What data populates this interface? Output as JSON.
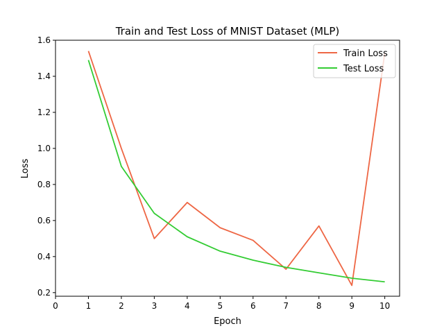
{
  "chart_data": {
    "type": "line",
    "title": "Train and Test Loss of MNIST Dataset (MLP)",
    "xlabel": "Epoch",
    "ylabel": "Loss",
    "xlim": [
      0,
      10.45
    ],
    "ylim": [
      0.18,
      1.6
    ],
    "xticks": [
      0,
      1,
      2,
      3,
      4,
      5,
      6,
      7,
      8,
      9,
      10
    ],
    "yticks": [
      0.2,
      0.4,
      0.6,
      0.8,
      1.0,
      1.2,
      1.4,
      1.6
    ],
    "ytick_labels": [
      "0.2",
      "0.4",
      "0.6",
      "0.8",
      "1.0",
      "1.2",
      "1.4",
      "1.6"
    ],
    "grid": false,
    "legend_position": "top-right",
    "x": [
      1,
      2,
      3,
      4,
      5,
      6,
      7,
      8,
      9,
      10
    ],
    "series": [
      {
        "name": "Train Loss",
        "color": "#ee6644",
        "values": [
          1.54,
          1.0,
          0.5,
          0.7,
          0.56,
          0.49,
          0.33,
          0.57,
          0.24,
          1.53
        ]
      },
      {
        "name": "Test Loss",
        "color": "#33cc33",
        "values": [
          1.49,
          0.9,
          0.64,
          0.51,
          0.43,
          0.38,
          0.34,
          0.31,
          0.28,
          0.26
        ]
      }
    ]
  }
}
